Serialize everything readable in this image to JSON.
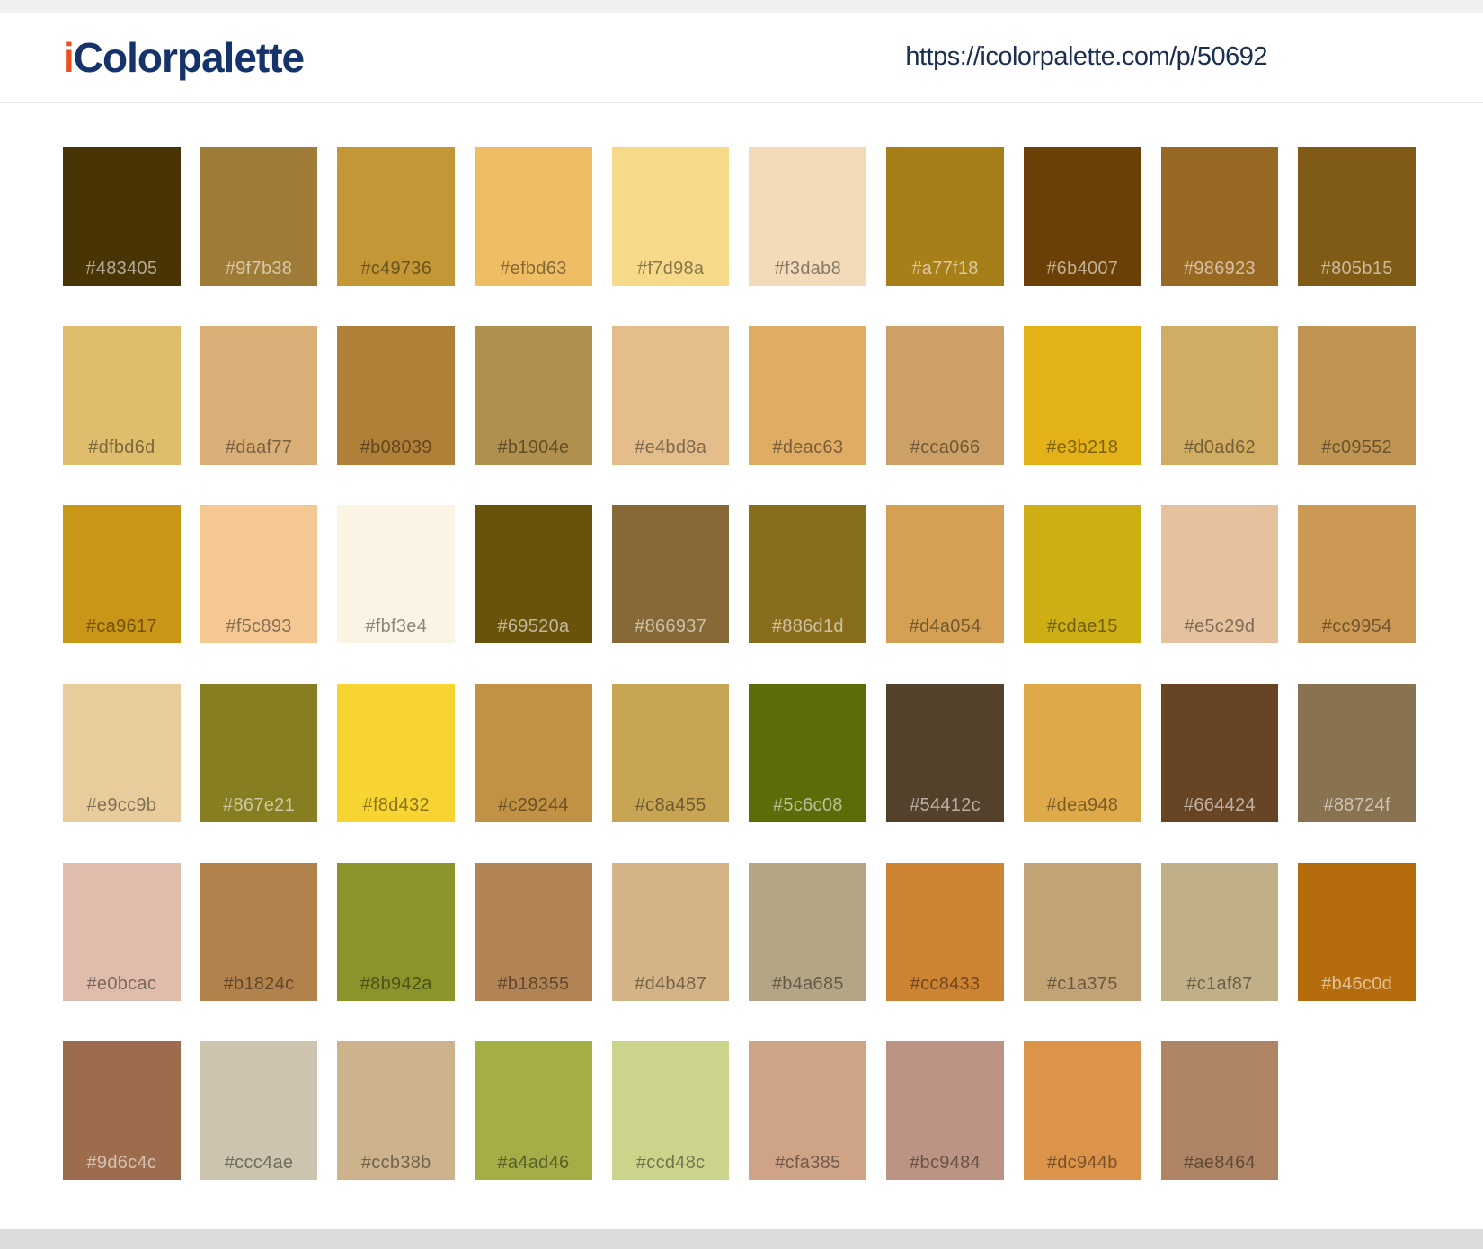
{
  "header": {
    "logo_prefix": "i",
    "logo_text": "Colorpalette",
    "url": "https://icolorpalette.com/p/50692"
  },
  "palette": {
    "rows": [
      {
        "swatches": [
          "#483405",
          "#9f7b38",
          "#c49736",
          "#efbd63",
          "#f7d98a",
          "#f3dab8",
          "#a77f18",
          "#6b4007",
          "#986923",
          "#805b15"
        ]
      },
      {
        "swatches": [
          "#dfbd6d",
          "#daaf77",
          "#b08039",
          "#b1904e",
          "#e4bd8a",
          "#deac63",
          "#cca066",
          "#e3b218",
          "#d0ad62",
          "#c09552"
        ]
      },
      {
        "swatches": [
          "#ca9617",
          "#f5c893",
          "#fbf3e4",
          "#69520a",
          "#866937",
          "#886d1d",
          "#d4a054",
          "#cdae15",
          "#e5c29d",
          "#cc9954"
        ]
      },
      {
        "swatches": [
          "#e9cc9b",
          "#867e21",
          "#f8d432",
          "#c29244",
          "#c8a455",
          "#5c6c08",
          "#54412c",
          "#dea948",
          "#664424",
          "#88724f"
        ]
      },
      {
        "swatches": [
          "#e0bcac",
          "#b1824c",
          "#8b942a",
          "#b18355",
          "#d4b487",
          "#b4a685",
          "#cc8433",
          "#c1a375",
          "#c1af87",
          "#b46c0d"
        ]
      },
      {
        "swatches": [
          "#9d6c4c",
          "#ccc4ae",
          "#ccb38b",
          "#a4ad46",
          "#ccd48c",
          "#cfa385",
          "#bc9484",
          "#dc944b",
          "#ae8464"
        ]
      }
    ]
  },
  "colors": {
    "logo_prefix": "#f04e1d",
    "logo_text": "#16326b",
    "url_text": "#1b2f52",
    "top_strip": "#f0f0f0",
    "header_border": "#e7e7e7",
    "footer": "#dcdcdc",
    "label_dark": "rgba(0,0,0,0.45)",
    "label_light": "rgba(255,255,255,0.58)"
  }
}
